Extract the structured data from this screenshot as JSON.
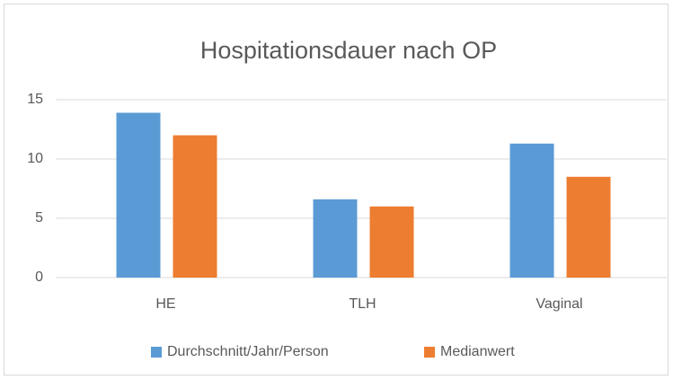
{
  "chart_data": {
    "type": "bar",
    "title": "Hospitationsdauer nach OP",
    "categories": [
      "HE",
      "TLH",
      "Vaginal"
    ],
    "series": [
      {
        "name": "Durchschnitt/Jahr/Person",
        "color": "#5b9bd5",
        "values": [
          13.9,
          6.6,
          11.3
        ]
      },
      {
        "name": "Medianwert",
        "color": "#ed7d31",
        "values": [
          12,
          6,
          8.5
        ]
      }
    ],
    "ylim": [
      0,
      15
    ],
    "yticks": [
      0,
      5,
      10,
      15
    ],
    "grid": true,
    "legend": "bottom"
  }
}
